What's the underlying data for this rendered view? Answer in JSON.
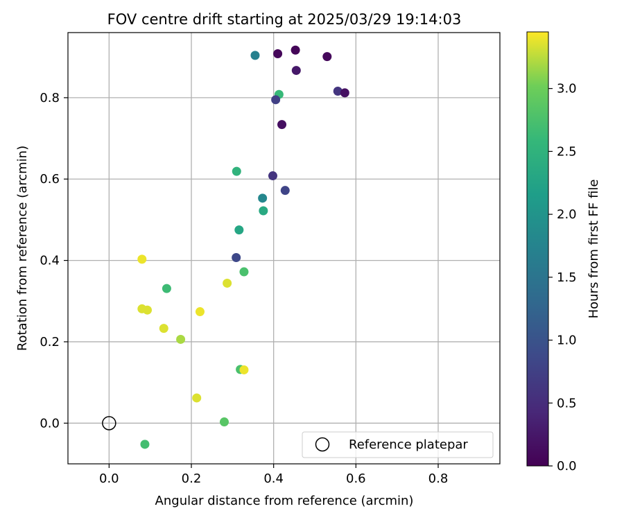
{
  "chart_data": {
    "type": "scatter",
    "title": "FOV centre drift starting at 2025/03/29 19:14:03",
    "xlabel": "Angular distance from reference (arcmin)",
    "ylabel": "Rotation from reference (arcmin)",
    "xlim": [
      -0.1,
      0.95
    ],
    "ylim": [
      -0.1,
      0.96
    ],
    "xticks": [
      "0.0",
      "0.2",
      "0.4",
      "0.6",
      "0.8"
    ],
    "yticks": [
      "0.0",
      "0.2",
      "0.4",
      "0.6",
      "0.8"
    ],
    "grid": true,
    "colormap": "viridis",
    "colorbar": {
      "label": "Hours from first FF file",
      "range": [
        0,
        3.45
      ],
      "ticks": [
        "0.0",
        "0.5",
        "1.0",
        "1.5",
        "2.0",
        "2.5",
        "3.0"
      ]
    },
    "legend": {
      "position": "lower-right",
      "label": "Reference platepar"
    },
    "reference_point": {
      "x": 0.0,
      "y": 0.0
    },
    "points": [
      {
        "x": 0.453,
        "y": 0.917,
        "c": 0.05
      },
      {
        "x": 0.41,
        "y": 0.908,
        "c": 0.07
      },
      {
        "x": 0.53,
        "y": 0.901,
        "c": 0.08
      },
      {
        "x": 0.355,
        "y": 0.904,
        "c": 1.7
      },
      {
        "x": 0.455,
        "y": 0.867,
        "c": 0.25
      },
      {
        "x": 0.556,
        "y": 0.816,
        "c": 0.6
      },
      {
        "x": 0.573,
        "y": 0.812,
        "c": 0.15
      },
      {
        "x": 0.413,
        "y": 0.808,
        "c": 2.6
      },
      {
        "x": 0.405,
        "y": 0.795,
        "c": 0.75
      },
      {
        "x": 0.42,
        "y": 0.734,
        "c": 0.15
      },
      {
        "x": 0.31,
        "y": 0.619,
        "c": 2.5
      },
      {
        "x": 0.398,
        "y": 0.608,
        "c": 0.6
      },
      {
        "x": 0.428,
        "y": 0.572,
        "c": 0.8
      },
      {
        "x": 0.373,
        "y": 0.553,
        "c": 1.8
      },
      {
        "x": 0.375,
        "y": 0.522,
        "c": 2.35
      },
      {
        "x": 0.316,
        "y": 0.475,
        "c": 2.3
      },
      {
        "x": 0.309,
        "y": 0.407,
        "c": 0.85
      },
      {
        "x": 0.08,
        "y": 0.403,
        "c": 3.4
      },
      {
        "x": 0.328,
        "y": 0.372,
        "c": 2.75
      },
      {
        "x": 0.287,
        "y": 0.344,
        "c": 3.35
      },
      {
        "x": 0.14,
        "y": 0.331,
        "c": 2.65
      },
      {
        "x": 0.08,
        "y": 0.281,
        "c": 3.35
      },
      {
        "x": 0.093,
        "y": 0.278,
        "c": 3.35
      },
      {
        "x": 0.221,
        "y": 0.274,
        "c": 3.4
      },
      {
        "x": 0.133,
        "y": 0.233,
        "c": 3.35
      },
      {
        "x": 0.174,
        "y": 0.206,
        "c": 3.2
      },
      {
        "x": 0.319,
        "y": 0.132,
        "c": 2.75
      },
      {
        "x": 0.328,
        "y": 0.131,
        "c": 3.4
      },
      {
        "x": 0.213,
        "y": 0.062,
        "c": 3.35
      },
      {
        "x": 0.28,
        "y": 0.003,
        "c": 2.85
      },
      {
        "x": 0.087,
        "y": -0.052,
        "c": 2.7
      }
    ]
  }
}
